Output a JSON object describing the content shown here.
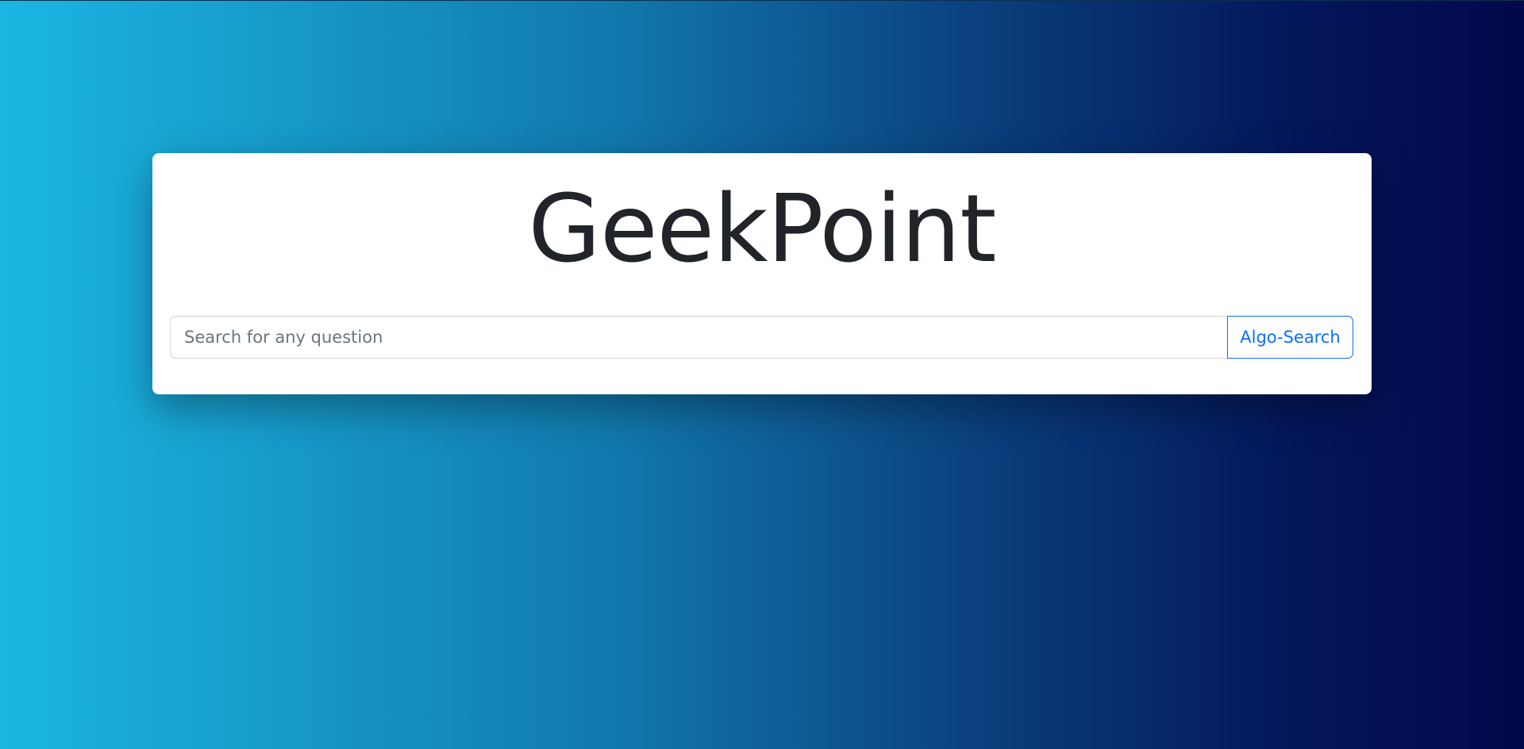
{
  "header": {
    "title": "GeekPoint"
  },
  "search": {
    "placeholder": "Search for any question",
    "value": "",
    "button_label": "Algo-Search"
  },
  "colors": {
    "background_gradient_start": "#1bb6e3",
    "background_gradient_end": "#02084a",
    "card_background": "#ffffff",
    "title_text": "#212529",
    "button_accent": "#0d6efd"
  }
}
